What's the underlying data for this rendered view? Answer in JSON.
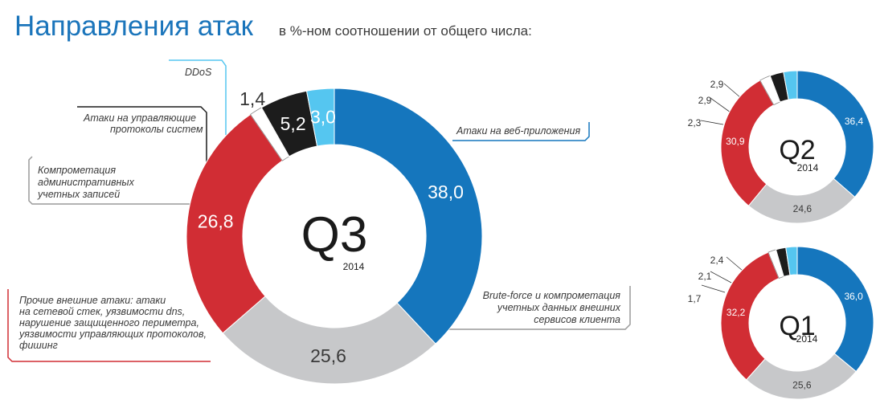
{
  "header": {
    "title": "Направления атак",
    "subtitle": "в %-ном соотношении от общего числа:"
  },
  "colors": {
    "web": "#1576bd",
    "brute": "#c7c8ca",
    "other": "#d12d34",
    "accounts": "#ffffff",
    "control": "#1c1c1c",
    "ddos": "#55c6f0",
    "title": "#1b75bb"
  },
  "chart_data": [
    {
      "type": "pie",
      "quarter": "Q3",
      "year": "2014",
      "slices": [
        {
          "key": "web",
          "value": 38.0,
          "label": "38,0"
        },
        {
          "key": "brute",
          "value": 25.6,
          "label": "25,6"
        },
        {
          "key": "other",
          "value": 26.8,
          "label": "26,8"
        },
        {
          "key": "accounts",
          "value": 1.4,
          "label": "1,4"
        },
        {
          "key": "control",
          "value": 5.2,
          "label": "5,2"
        },
        {
          "key": "ddos",
          "value": 3.0,
          "label": "3,0"
        }
      ],
      "categories": {
        "ddos": [
          "DDoS"
        ],
        "control": [
          "Атаки на управляющие",
          "протоколы систем"
        ],
        "accounts": [
          "Компрометация",
          "административных",
          "учетных записей"
        ],
        "web": [
          "Атаки на веб-приложения"
        ],
        "brute": [
          "Brute-force и компрометация",
          "учетных данных внешних",
          "сервисов клиента"
        ],
        "other": [
          "Прочие внешние атаки: атаки",
          "на сетевой стек, уязвимости dns,",
          "нарушение защищенного периметра,",
          "уязвимости управляющих протоколов,",
          "фишинг"
        ]
      }
    },
    {
      "type": "pie",
      "quarter": "Q2",
      "year": "2014",
      "slices": [
        {
          "key": "web",
          "value": 36.4,
          "label": "36,4"
        },
        {
          "key": "brute",
          "value": 24.6,
          "label": "24,6"
        },
        {
          "key": "other",
          "value": 30.9,
          "label": "30,9"
        },
        {
          "key": "accounts",
          "value": 2.3,
          "label": "2,3"
        },
        {
          "key": "control",
          "value": 2.9,
          "label": "2,9"
        },
        {
          "key": "ddos",
          "value": 2.9,
          "label": "2,9"
        }
      ]
    },
    {
      "type": "pie",
      "quarter": "Q1",
      "year": "2014",
      "slices": [
        {
          "key": "web",
          "value": 36.0,
          "label": "36,0"
        },
        {
          "key": "brute",
          "value": 25.6,
          "label": "25,6"
        },
        {
          "key": "other",
          "value": 32.2,
          "label": "32,2"
        },
        {
          "key": "accounts",
          "value": 1.7,
          "label": "1,7"
        },
        {
          "key": "control",
          "value": 2.1,
          "label": "2,1"
        },
        {
          "key": "ddos",
          "value": 2.4,
          "label": "2,4"
        }
      ]
    }
  ]
}
